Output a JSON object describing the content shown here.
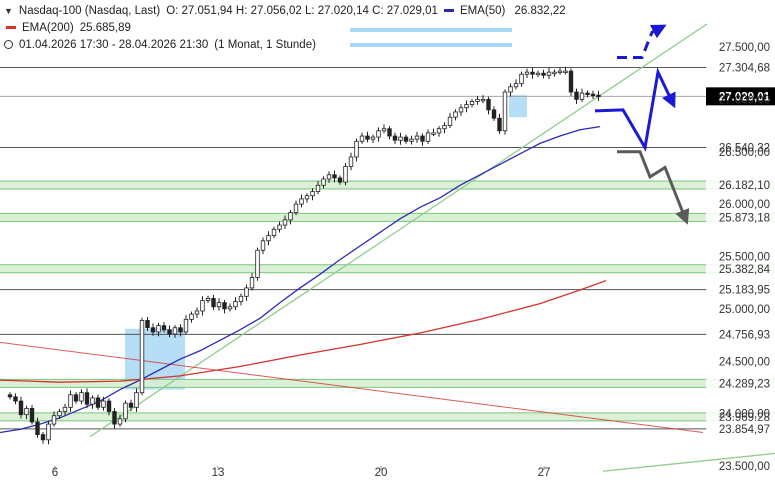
{
  "header": {
    "instrument": "Nasdaq-100 (Nasdaq, Last)",
    "ohlc": "O: 27.051,94  H: 27.056,02  L: 27.020,14  C: 27.029,01",
    "ema50_label": "EMA(50)",
    "ema50_value": "26.832,22",
    "ema200_label": "EMA(200)",
    "ema200_value": "25.685,89",
    "range": "01.04.2026 17:30 - 28.04.2026 21:30",
    "interval": "(1 Monat, 1 Stunde)"
  },
  "colors": {
    "ema50": "#2b2bb8",
    "ema200": "#d8322f",
    "trend_line": "#8fce8f",
    "support_line": "#555555",
    "zone": "#a9d8f5",
    "bull_arrow": "#1a1ad6",
    "bear_arrow": "#5a5a5a",
    "current_price_bg": "#000000"
  },
  "chart_data": {
    "type": "candlestick",
    "x_ticks": [
      "6",
      "13",
      "20",
      "27"
    ],
    "y_ticks": [
      "23.500,00",
      "24.000,00",
      "24.500,00",
      "25.000,00",
      "25.500,00",
      "26.000,00",
      "26.500,00",
      "27.000,00",
      "27.500,00"
    ],
    "ylim": [
      23500,
      27600
    ],
    "levels": [
      {
        "value": 27304.68,
        "label": "27.304,68",
        "style": "thin"
      },
      {
        "value": 27029.01,
        "label": "27.029,01",
        "style": "current"
      },
      {
        "value": 26540.32,
        "label": "26.540,32",
        "style": "thin"
      },
      {
        "value": 26182.1,
        "label": "26.182,10",
        "style": "band"
      },
      {
        "value": 25873.18,
        "label": "25.873,18",
        "style": "band"
      },
      {
        "value": 25382.84,
        "label": "25.382,84",
        "style": "band"
      },
      {
        "value": 25183.95,
        "label": "25.183,95",
        "style": "thin"
      },
      {
        "value": 24756.93,
        "label": "24.756,93",
        "style": "thin"
      },
      {
        "value": 24289.23,
        "label": "24.289,23",
        "style": "band"
      },
      {
        "value": 23969.28,
        "label": "23.969,28",
        "style": "band"
      },
      {
        "value": 23854.97,
        "label": "23.854,97",
        "style": "thin"
      }
    ],
    "series": [
      {
        "name": "Nasdaq-100",
        "closes": [
          24160,
          24120,
          23990,
          24050,
          23920,
          23800,
          23750,
          23900,
          23980,
          24020,
          24060,
          24180,
          24120,
          24200,
          24090,
          24150,
          24060,
          24120,
          24020,
          23900,
          23950,
          24100,
          24060,
          24200,
          24890,
          24820,
          24780,
          24840,
          24800,
          24760,
          24820,
          24780,
          24900,
          24950,
          24980,
          25080,
          25100,
          25020,
          25060,
          25000,
          25020,
          25070,
          25120,
          25200,
          25300,
          25560,
          25650,
          25700,
          25760,
          25800,
          25850,
          25920,
          26000,
          26050,
          26080,
          26120,
          26180,
          26240,
          26280,
          26250,
          26210,
          26360,
          26450,
          26600,
          26650,
          26620,
          26640,
          26700,
          26720,
          26650,
          26610,
          26640,
          26600,
          26620,
          26650,
          26600,
          26680,
          26680,
          26720,
          26750,
          26830,
          26880,
          26920,
          26950,
          26980,
          27000,
          27000,
          26900,
          26820,
          26700,
          27070,
          27120,
          27150,
          27240,
          27260,
          27240,
          27250,
          27230,
          27260,
          27260,
          27270,
          27270,
          27070,
          27000,
          27060,
          27050,
          27040,
          27029
        ]
      },
      {
        "name": "EMA(50)",
        "points": [
          [
            0,
            23820
          ],
          [
            20,
            23850
          ],
          [
            40,
            23900
          ],
          [
            60,
            23960
          ],
          [
            80,
            24040
          ],
          [
            100,
            24120
          ],
          [
            120,
            24230
          ],
          [
            140,
            24320
          ],
          [
            160,
            24420
          ],
          [
            180,
            24520
          ],
          [
            200,
            24600
          ],
          [
            220,
            24700
          ],
          [
            240,
            24800
          ],
          [
            260,
            24910
          ],
          [
            280,
            25060
          ],
          [
            300,
            25200
          ],
          [
            320,
            25330
          ],
          [
            340,
            25470
          ],
          [
            360,
            25600
          ],
          [
            380,
            25730
          ],
          [
            400,
            25860
          ],
          [
            420,
            25970
          ],
          [
            440,
            26060
          ],
          [
            460,
            26180
          ],
          [
            480,
            26280
          ],
          [
            500,
            26380
          ],
          [
            520,
            26480
          ],
          [
            540,
            26580
          ],
          [
            560,
            26650
          ],
          [
            580,
            26710
          ],
          [
            600,
            26740
          ]
        ]
      },
      {
        "name": "EMA(200)",
        "points": [
          [
            0,
            24320
          ],
          [
            60,
            24300
          ],
          [
            120,
            24310
          ],
          [
            180,
            24360
          ],
          [
            240,
            24450
          ],
          [
            300,
            24560
          ],
          [
            360,
            24660
          ],
          [
            420,
            24770
          ],
          [
            480,
            24900
          ],
          [
            540,
            25050
          ],
          [
            580,
            25180
          ],
          [
            606,
            25270
          ]
        ]
      }
    ],
    "annotations": [
      {
        "type": "zone",
        "x": [
          125,
          185
        ],
        "y": [
          24230,
          24810
        ]
      },
      {
        "type": "zone",
        "x": [
          509,
          527
        ],
        "y": [
          26830,
          27040
        ]
      },
      {
        "type": "trend_line",
        "from": [
          90,
          23780
        ],
        "to": [
          707,
          27720
        ]
      },
      {
        "type": "trend_line",
        "from": [
          0,
          24680
        ],
        "to": [
          703,
          23820
        ]
      },
      {
        "type": "trend_line",
        "from": [
          603,
          23450
        ],
        "to": [
          775,
          23620
        ]
      },
      {
        "type": "scenario_bull",
        "points": [
          [
            595,
            26890
          ],
          [
            623,
            26900
          ],
          [
            645,
            26540
          ],
          [
            658,
            27260
          ],
          [
            672,
            26980
          ]
        ]
      },
      {
        "type": "scenario_bull_dashed",
        "points": [
          [
            617,
            27400
          ],
          [
            642,
            27400
          ],
          [
            652,
            27640
          ],
          [
            660,
            27680
          ]
        ]
      },
      {
        "type": "scenario_bear",
        "points": [
          [
            617,
            26500
          ],
          [
            640,
            26500
          ],
          [
            650,
            26260
          ],
          [
            665,
            26350
          ],
          [
            685,
            25870
          ]
        ]
      }
    ]
  }
}
